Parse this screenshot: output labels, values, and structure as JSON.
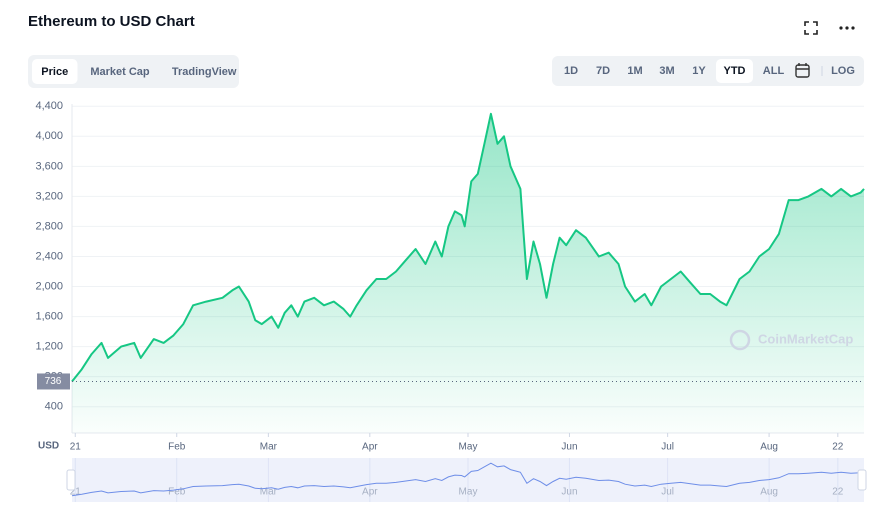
{
  "chart_data": {
    "type": "area",
    "title": "Ethereum to USD Chart",
    "x": [
      -1,
      2,
      5,
      8,
      10,
      14,
      18,
      20,
      24,
      27,
      30,
      33,
      36,
      40,
      45,
      48,
      50,
      53,
      55,
      57,
      60,
      62,
      64,
      66,
      68,
      70,
      73,
      76,
      79,
      82,
      84,
      86,
      89,
      92,
      95,
      98,
      101,
      104,
      107,
      110,
      112,
      114,
      116,
      118,
      119,
      121,
      123,
      125,
      127,
      129,
      131,
      133,
      135,
      136,
      137,
      138,
      140,
      142,
      144,
      146,
      148,
      150,
      153,
      156,
      160,
      163,
      166,
      168,
      171,
      174,
      176,
      179,
      182,
      185,
      188,
      191,
      194,
      197,
      199,
      203,
      206,
      209,
      212,
      215,
      218,
      221,
      224,
      228,
      231,
      234,
      237,
      240,
      241
    ],
    "values": [
      736,
      900,
      1100,
      1250,
      1050,
      1200,
      1250,
      1050,
      1300,
      1250,
      1350,
      1500,
      1750,
      1800,
      1850,
      1950,
      2000,
      1800,
      1550,
      1500,
      1600,
      1450,
      1650,
      1750,
      1600,
      1800,
      1850,
      1750,
      1800,
      1700,
      1600,
      1750,
      1950,
      2100,
      2100,
      2200,
      2350,
      2500,
      2300,
      2600,
      2400,
      2800,
      3000,
      2950,
      2800,
      3400,
      3500,
      3900,
      4300,
      3900,
      4000,
      3600,
      3400,
      3300,
      2700,
      2100,
      2600,
      2300,
      1850,
      2300,
      2650,
      2550,
      2750,
      2650,
      2400,
      2450,
      2300,
      2000,
      1800,
      1900,
      1750,
      2000,
      2100,
      2200,
      2050,
      1900,
      1900,
      1800,
      1750,
      2100,
      2200,
      2400,
      2500,
      2700,
      3150,
      3150,
      3200,
      3300,
      3200,
      3300,
      3200,
      3250,
      3300
    ],
    "color": "#16c784",
    "xlim": [
      -1,
      241
    ],
    "xticks": [
      {
        "value": 0,
        "label": "21"
      },
      {
        "value": 31,
        "label": "Feb"
      },
      {
        "value": 59,
        "label": "Mar"
      },
      {
        "value": 90,
        "label": "Apr"
      },
      {
        "value": 120,
        "label": "May"
      },
      {
        "value": 151,
        "label": "Jun"
      },
      {
        "value": 181,
        "label": "Jul"
      },
      {
        "value": 212,
        "label": "Aug"
      },
      {
        "value": 233,
        "label": "22"
      }
    ],
    "ylim": [
      50,
      4430
    ],
    "yticks": [
      {
        "value": 400,
        "label": "400"
      },
      {
        "value": 800,
        "label": "800"
      },
      {
        "value": 1200,
        "label": "1,200"
      },
      {
        "value": 1600,
        "label": "1,600"
      },
      {
        "value": 2000,
        "label": "2,000"
      },
      {
        "value": 2400,
        "label": "2,400"
      },
      {
        "value": 2800,
        "label": "2,800"
      },
      {
        "value": 3200,
        "label": "3,200"
      },
      {
        "value": 3600,
        "label": "3,600"
      },
      {
        "value": 4000,
        "label": "4,000"
      },
      {
        "value": 4400,
        "label": "4,400"
      }
    ],
    "grid": true,
    "reference_value": 736,
    "y_unit": "USD",
    "watermark": "CoinMarketCap"
  },
  "tabs": [
    "Price",
    "Market Cap",
    "TradingView"
  ],
  "active_tab": 0,
  "ranges": [
    "1D",
    "7D",
    "1M",
    "3M",
    "1Y",
    "YTD",
    "ALL"
  ],
  "active_range": 5,
  "log_button": "LOG"
}
